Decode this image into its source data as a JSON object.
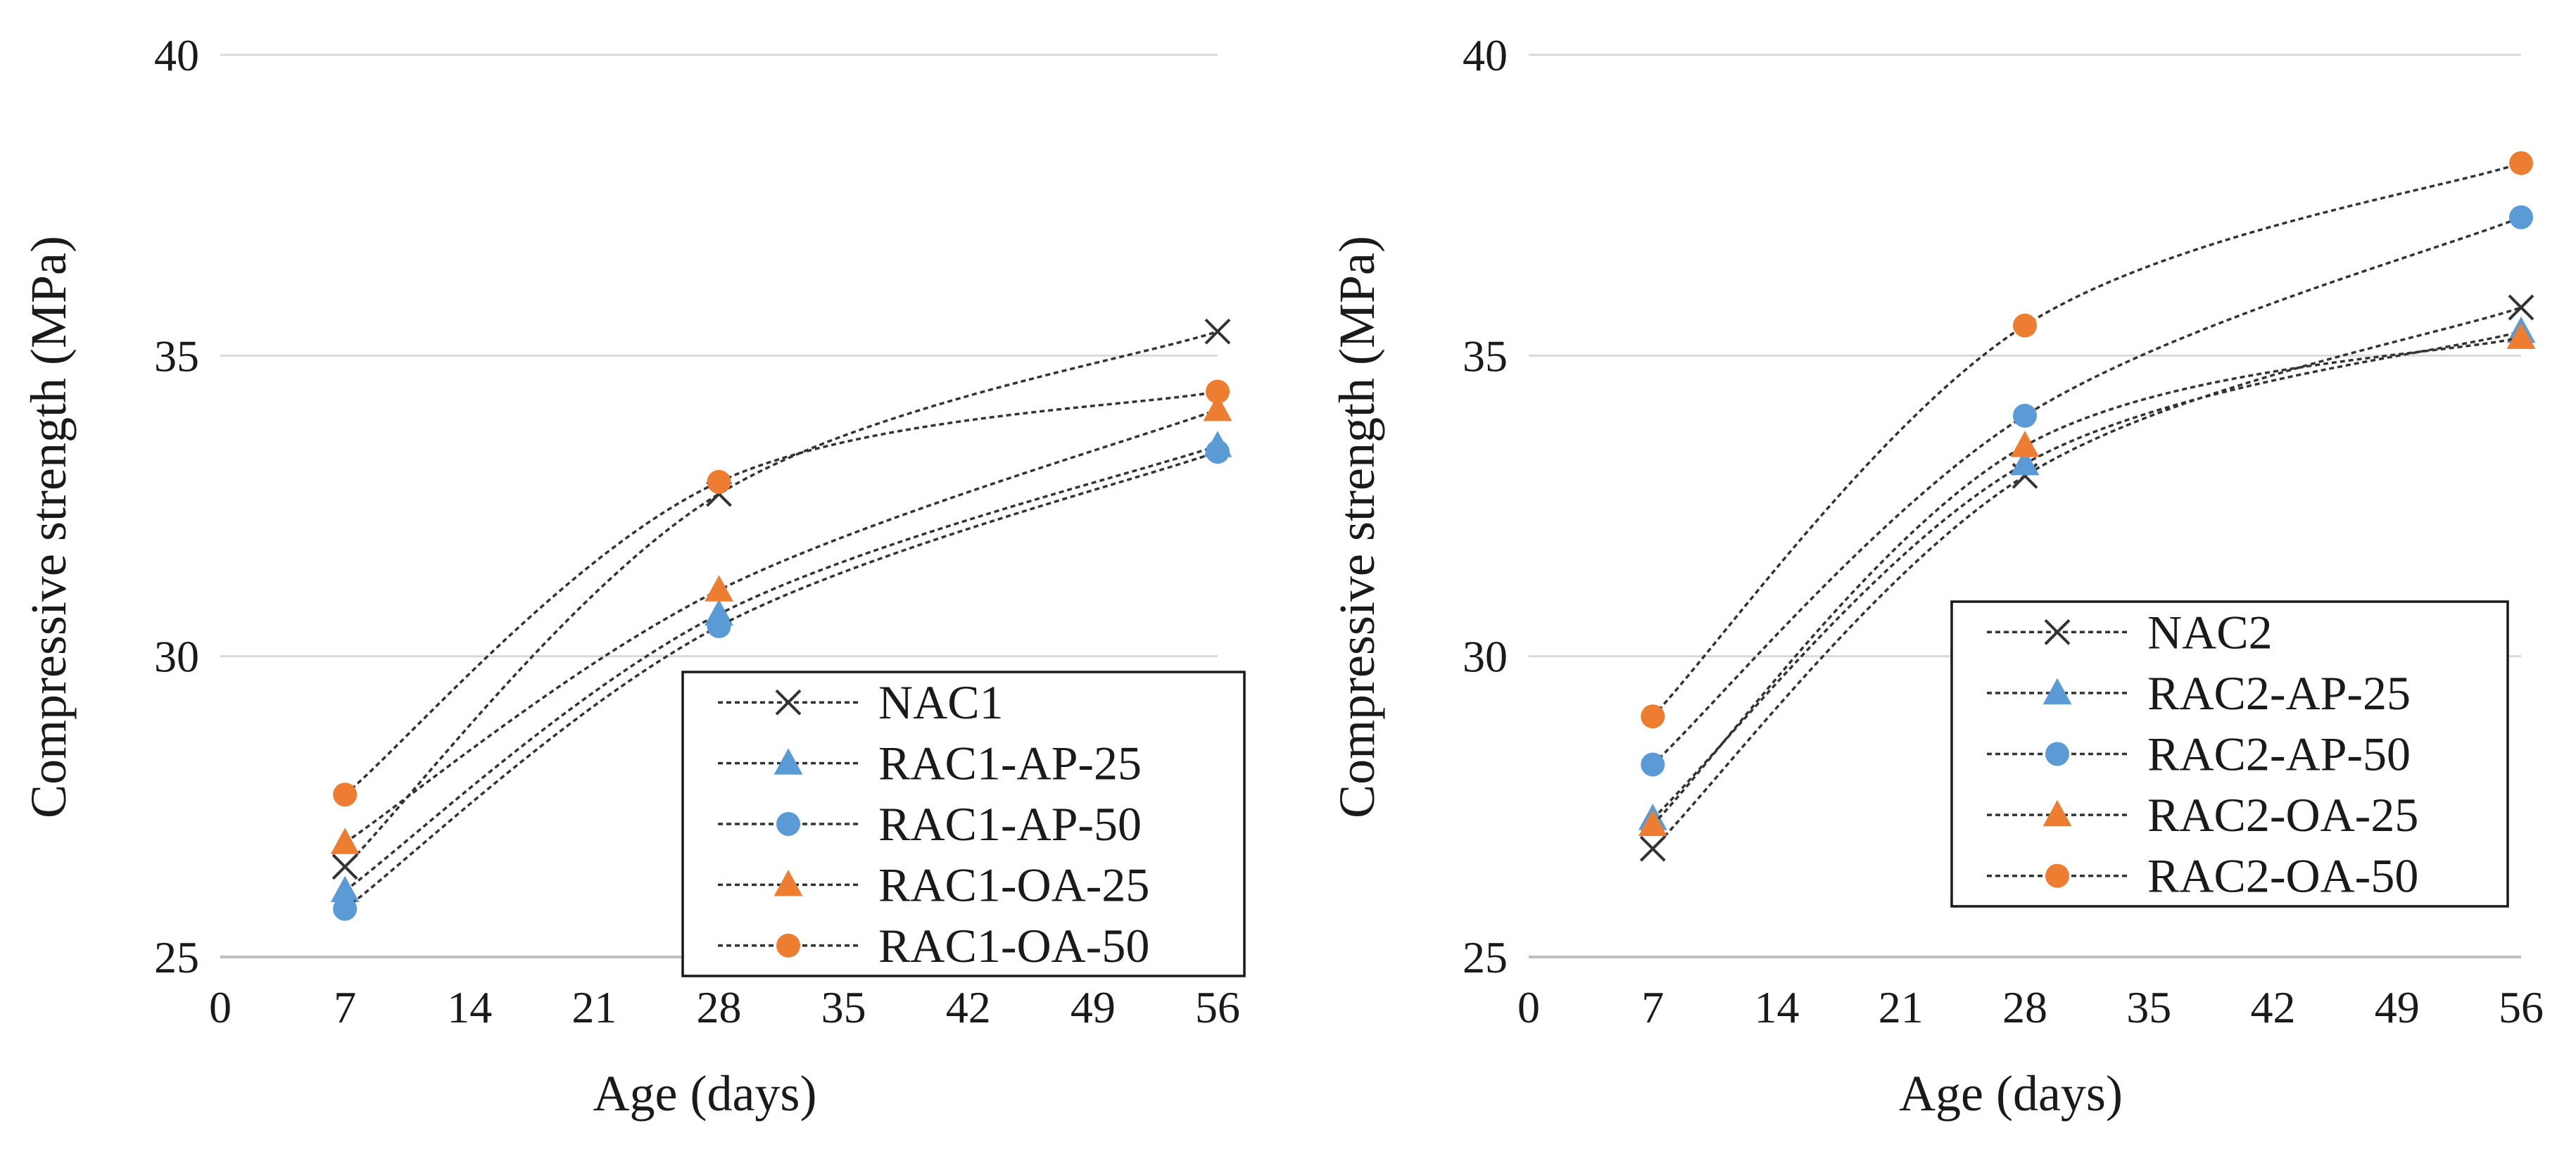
{
  "chart_data": [
    {
      "type": "line",
      "xlabel": "Age (days)",
      "ylabel": "Compressive strength (MPa)",
      "xlim": [
        0,
        56
      ],
      "ylim": [
        25,
        40
      ],
      "xticks": [
        0,
        7,
        14,
        21,
        28,
        35,
        42,
        49,
        56
      ],
      "yticks": [
        25,
        30,
        35,
        40
      ],
      "grid": "horizontal",
      "legend_position": "bottom-right",
      "series": [
        {
          "name": "NAC1",
          "marker": "x",
          "color": "#333333",
          "x": [
            7,
            28,
            56
          ],
          "values": [
            26.5,
            32.7,
            35.4
          ]
        },
        {
          "name": "RAC1-AP-25",
          "marker": "triangle",
          "color": "#5B9BD5",
          "x": [
            7,
            28,
            56
          ],
          "values": [
            26.1,
            30.7,
            33.5
          ]
        },
        {
          "name": "RAC1-AP-50",
          "marker": "circle",
          "color": "#5B9BD5",
          "x": [
            7,
            28,
            56
          ],
          "values": [
            25.8,
            30.5,
            33.4
          ]
        },
        {
          "name": "RAC1-OA-25",
          "marker": "triangle",
          "color": "#ED7D31",
          "x": [
            7,
            28,
            56
          ],
          "values": [
            26.9,
            31.1,
            34.1
          ]
        },
        {
          "name": "RAC1-OA-50",
          "marker": "circle",
          "color": "#ED7D31",
          "x": [
            7,
            28,
            56
          ],
          "values": [
            27.7,
            32.9,
            34.4
          ]
        }
      ]
    },
    {
      "type": "line",
      "xlabel": "Age (days)",
      "ylabel": "Compressive strength (MPa)",
      "xlim": [
        0,
        56
      ],
      "ylim": [
        25,
        40
      ],
      "xticks": [
        0,
        7,
        14,
        21,
        28,
        35,
        42,
        49,
        56
      ],
      "yticks": [
        25,
        30,
        35,
        40
      ],
      "grid": "horizontal",
      "legend_position": "center-right",
      "series": [
        {
          "name": "NAC2",
          "marker": "x",
          "color": "#333333",
          "x": [
            7,
            28,
            56
          ],
          "values": [
            26.8,
            33.0,
            35.8
          ]
        },
        {
          "name": "RAC2-AP-25",
          "marker": "triangle",
          "color": "#5B9BD5",
          "x": [
            7,
            28,
            56
          ],
          "values": [
            27.3,
            33.2,
            35.4
          ]
        },
        {
          "name": "RAC2-AP-50",
          "marker": "circle",
          "color": "#5B9BD5",
          "x": [
            7,
            28,
            56
          ],
          "values": [
            28.2,
            34.0,
            37.3
          ]
        },
        {
          "name": "RAC2-OA-25",
          "marker": "triangle",
          "color": "#ED7D31",
          "x": [
            7,
            28,
            56
          ],
          "values": [
            27.2,
            33.5,
            35.3
          ]
        },
        {
          "name": "RAC2-OA-50",
          "marker": "circle",
          "color": "#ED7D31",
          "x": [
            7,
            28,
            56
          ],
          "values": [
            29.0,
            35.5,
            38.2
          ]
        }
      ]
    }
  ]
}
